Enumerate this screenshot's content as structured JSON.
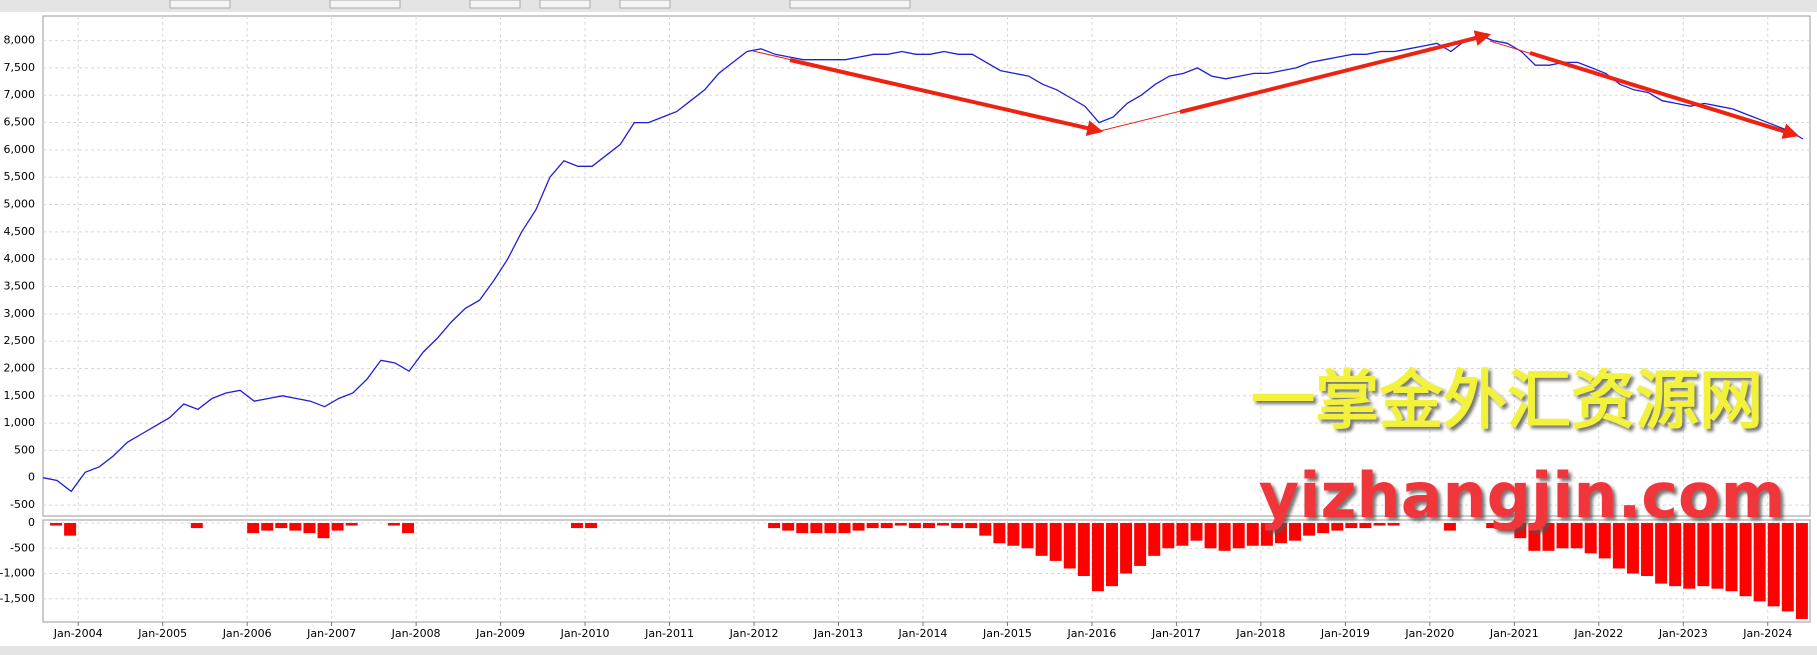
{
  "chart_data": [
    {
      "type": "line",
      "x": [
        "2003-08",
        "2003-10",
        "2003-12",
        "2004-02",
        "2004-04",
        "2004-06",
        "2004-08",
        "2004-10",
        "2004-12",
        "2005-02",
        "2005-04",
        "2005-06",
        "2005-08",
        "2005-10",
        "2005-12",
        "2006-02",
        "2006-04",
        "2006-06",
        "2006-08",
        "2006-10",
        "2006-12",
        "2007-02",
        "2007-04",
        "2007-06",
        "2007-08",
        "2007-10",
        "2007-12",
        "2008-02",
        "2008-04",
        "2008-06",
        "2008-08",
        "2008-10",
        "2008-12",
        "2009-02",
        "2009-04",
        "2009-06",
        "2009-08",
        "2009-10",
        "2009-12",
        "2010-02",
        "2010-04",
        "2010-06",
        "2010-08",
        "2010-10",
        "2010-12",
        "2011-02",
        "2011-04",
        "2011-06",
        "2011-08",
        "2011-10",
        "2011-12",
        "2012-02",
        "2012-04",
        "2012-06",
        "2012-08",
        "2012-10",
        "2012-12",
        "2013-02",
        "2013-04",
        "2013-06",
        "2013-08",
        "2013-10",
        "2013-12",
        "2014-02",
        "2014-04",
        "2014-06",
        "2014-08",
        "2014-10",
        "2014-12",
        "2015-02",
        "2015-04",
        "2015-06",
        "2015-08",
        "2015-10",
        "2015-12",
        "2016-02",
        "2016-04",
        "2016-06",
        "2016-08",
        "2016-10",
        "2016-12",
        "2017-02",
        "2017-04",
        "2017-06",
        "2017-08",
        "2017-10",
        "2017-12",
        "2018-02",
        "2018-04",
        "2018-06",
        "2018-08",
        "2018-10",
        "2018-12",
        "2019-02",
        "2019-04",
        "2019-06",
        "2019-08",
        "2019-10",
        "2019-12",
        "2020-02",
        "2020-04",
        "2020-06",
        "2020-08",
        "2020-10",
        "2020-12",
        "2021-02",
        "2021-04",
        "2021-06",
        "2021-08",
        "2021-10",
        "2021-12",
        "2022-02",
        "2022-04",
        "2022-06",
        "2022-08",
        "2022-10",
        "2022-12",
        "2023-02",
        "2023-04",
        "2023-06",
        "2023-08",
        "2023-10",
        "2023-12",
        "2024-02",
        "2024-04",
        "2024-06"
      ],
      "series": [
        {
          "color": "#1f1fd8",
          "values": [
            0,
            -50,
            -250,
            100,
            200,
            400,
            650,
            800,
            950,
            1100,
            1350,
            1250,
            1450,
            1550,
            1600,
            1400,
            1450,
            1500,
            1450,
            1400,
            1300,
            1450,
            1550,
            1800,
            2150,
            2100,
            1950,
            2300,
            2550,
            2850,
            3100,
            3250,
            3600,
            4000,
            4500,
            4900,
            5500,
            5800,
            5700,
            5700,
            5900,
            6100,
            6500,
            6500,
            6600,
            6700,
            6900,
            7100,
            7400,
            7600,
            7800,
            7850,
            7750,
            7700,
            7650,
            7650,
            7650,
            7650,
            7700,
            7750,
            7750,
            7800,
            7750,
            7750,
            7800,
            7750,
            7750,
            7600,
            7450,
            7400,
            7350,
            7200,
            7100,
            6950,
            6800,
            6500,
            6600,
            6850,
            7000,
            7200,
            7350,
            7400,
            7500,
            7350,
            7300,
            7350,
            7400,
            7400,
            7450,
            7500,
            7600,
            7650,
            7700,
            7750,
            7750,
            7800,
            7800,
            7850,
            7900,
            7950,
            7800,
            8000,
            8100,
            8000,
            7950,
            7800,
            7550,
            7550,
            7600,
            7600,
            7500,
            7400,
            7200,
            7100,
            7050,
            6900,
            6850,
            6800,
            6850,
            6800,
            6750,
            6650,
            6550,
            6450,
            6350,
            6200
          ]
        }
      ],
      "xlim": [
        "2003-08",
        "2024-07"
      ],
      "ylim": [
        -700,
        8450
      ],
      "yticks": [
        -500,
        0,
        500,
        {
          "value": 1000,
          "label": "1,000"
        },
        {
          "value": 1500,
          "label": "1,500"
        },
        {
          "value": 2000,
          "label": "2,000"
        },
        {
          "value": 2500,
          "label": "2,500"
        },
        {
          "value": 3000,
          "label": "3,000"
        },
        {
          "value": 3500,
          "label": "3,500"
        },
        {
          "value": 4000,
          "label": "4,000"
        },
        {
          "value": 4500,
          "label": "4,500"
        },
        {
          "value": 5000,
          "label": "5,000"
        },
        {
          "value": 5500,
          "label": "5,500"
        },
        {
          "value": 6000,
          "label": "6,000"
        },
        {
          "value": 6500,
          "label": "6,500"
        },
        {
          "value": 7000,
          "label": "7,000"
        },
        {
          "value": 7500,
          "label": "7,500"
        },
        {
          "value": 8000,
          "label": "8,000"
        }
      ],
      "grid": true,
      "watermark": [
        "一掌金外汇资源网",
        "yizhangjin.com"
      ]
    },
    {
      "type": "bar",
      "x": [
        "2003-08",
        "2003-10",
        "2003-12",
        "2004-02",
        "2004-04",
        "2004-06",
        "2004-08",
        "2004-10",
        "2004-12",
        "2005-02",
        "2005-04",
        "2005-06",
        "2005-08",
        "2005-10",
        "2005-12",
        "2006-02",
        "2006-04",
        "2006-06",
        "2006-08",
        "2006-10",
        "2006-12",
        "2007-02",
        "2007-04",
        "2007-06",
        "2007-08",
        "2007-10",
        "2007-12",
        "2008-02",
        "2008-04",
        "2008-06",
        "2008-08",
        "2008-10",
        "2008-12",
        "2009-02",
        "2009-04",
        "2009-06",
        "2009-08",
        "2009-10",
        "2009-12",
        "2010-02",
        "2010-04",
        "2010-06",
        "2010-08",
        "2010-10",
        "2010-12",
        "2011-02",
        "2011-04",
        "2011-06",
        "2011-08",
        "2011-10",
        "2011-12",
        "2012-02",
        "2012-04",
        "2012-06",
        "2012-08",
        "2012-10",
        "2012-12",
        "2013-02",
        "2013-04",
        "2013-06",
        "2013-08",
        "2013-10",
        "2013-12",
        "2014-02",
        "2014-04",
        "2014-06",
        "2014-08",
        "2014-10",
        "2014-12",
        "2015-02",
        "2015-04",
        "2015-06",
        "2015-08",
        "2015-10",
        "2015-12",
        "2016-02",
        "2016-04",
        "2016-06",
        "2016-08",
        "2016-10",
        "2016-12",
        "2017-02",
        "2017-04",
        "2017-06",
        "2017-08",
        "2017-10",
        "2017-12",
        "2018-02",
        "2018-04",
        "2018-06",
        "2018-08",
        "2018-10",
        "2018-12",
        "2019-02",
        "2019-04",
        "2019-06",
        "2019-08",
        "2019-10",
        "2019-12",
        "2020-02",
        "2020-04",
        "2020-06",
        "2020-08",
        "2020-10",
        "2020-12",
        "2021-02",
        "2021-04",
        "2021-06",
        "2021-08",
        "2021-10",
        "2021-12",
        "2022-02",
        "2022-04",
        "2022-06",
        "2022-08",
        "2022-10",
        "2022-12",
        "2023-02",
        "2023-04",
        "2023-06",
        "2023-08",
        "2023-10",
        "2023-12",
        "2024-02",
        "2024-04",
        "2024-06"
      ],
      "series": [
        {
          "color": "#ff0000",
          "values": [
            0,
            -50,
            -250,
            0,
            0,
            0,
            0,
            0,
            0,
            0,
            0,
            -100,
            0,
            0,
            0,
            -200,
            -150,
            -100,
            -150,
            -200,
            -300,
            -150,
            -50,
            0,
            0,
            -50,
            -200,
            0,
            0,
            0,
            0,
            0,
            0,
            0,
            0,
            0,
            0,
            0,
            -100,
            -100,
            0,
            0,
            0,
            0,
            0,
            0,
            0,
            0,
            0,
            0,
            0,
            0,
            -100,
            -150,
            -200,
            -200,
            -200,
            -200,
            -150,
            -100,
            -100,
            -50,
            -100,
            -100,
            -50,
            -100,
            -100,
            -250,
            -400,
            -450,
            -500,
            -650,
            -750,
            -900,
            -1050,
            -1350,
            -1250,
            -1000,
            -850,
            -650,
            -500,
            -450,
            -350,
            -500,
            -550,
            -500,
            -450,
            -450,
            -400,
            -350,
            -250,
            -200,
            -150,
            -100,
            -100,
            -50,
            -50,
            0,
            0,
            0,
            -150,
            0,
            0,
            -100,
            -150,
            -300,
            -550,
            -550,
            -500,
            -500,
            -600,
            -700,
            -900,
            -1000,
            -1050,
            -1200,
            -1250,
            -1300,
            -1250,
            -1300,
            -1350,
            -1450,
            -1550,
            -1650,
            -1750,
            -1900
          ]
        }
      ],
      "xlim": [
        "2003-08",
        "2024-07"
      ],
      "xticks": [
        {
          "value": "2004-01",
          "label": "Jan-2004"
        },
        {
          "value": "2005-01",
          "label": "Jan-2005"
        },
        {
          "value": "2006-01",
          "label": "Jan-2006"
        },
        {
          "value": "2007-01",
          "label": "Jan-2007"
        },
        {
          "value": "2008-01",
          "label": "Jan-2008"
        },
        {
          "value": "2009-01",
          "label": "Jan-2009"
        },
        {
          "value": "2010-01",
          "label": "Jan-2010"
        },
        {
          "value": "2011-01",
          "label": "Jan-2011"
        },
        {
          "value": "2012-01",
          "label": "Jan-2012"
        },
        {
          "value": "2013-01",
          "label": "Jan-2013"
        },
        {
          "value": "2014-01",
          "label": "Jan-2014"
        },
        {
          "value": "2015-01",
          "label": "Jan-2015"
        },
        {
          "value": "2016-01",
          "label": "Jan-2016"
        },
        {
          "value": "2017-01",
          "label": "Jan-2017"
        },
        {
          "value": "2018-01",
          "label": "Jan-2018"
        },
        {
          "value": "2019-01",
          "label": "Jan-2019"
        },
        {
          "value": "2020-01",
          "label": "Jan-2020"
        },
        {
          "value": "2021-01",
          "label": "Jan-2021"
        },
        {
          "value": "2022-01",
          "label": "Jan-2022"
        },
        {
          "value": "2023-01",
          "label": "Jan-2023"
        },
        {
          "value": "2024-01",
          "label": "Jan-2024"
        }
      ],
      "ylim": [
        -1960,
        60
      ],
      "yticks": [
        {
          "value": -1500,
          "label": "-1,500"
        },
        {
          "value": -1000,
          "label": "-1,000"
        },
        -500,
        0
      ],
      "grid": true
    }
  ]
}
